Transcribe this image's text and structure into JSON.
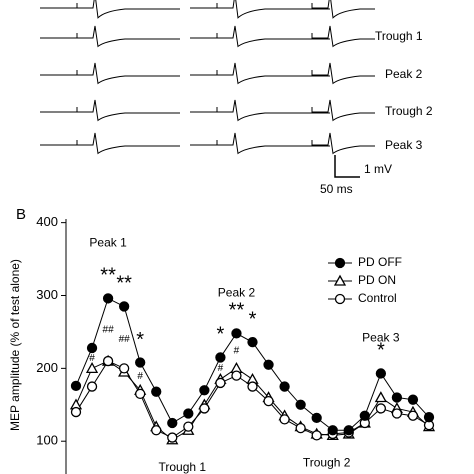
{
  "panel_label": "B",
  "traces": {
    "labels": [
      "Trough 1",
      "Peak 2",
      "Trough 2",
      "Peak 3"
    ],
    "scale_y": "1 mV",
    "scale_x": "50 ms"
  },
  "chart_data": {
    "type": "line",
    "ylabel": "MEP amplitude (% of test alone)",
    "categories": [
      null,
      null,
      null,
      null,
      null,
      null,
      null,
      null,
      null,
      null,
      null,
      null,
      null,
      null,
      null,
      null,
      null,
      null,
      null,
      null,
      null,
      null,
      null
    ],
    "series": [
      {
        "name": "PD OFF",
        "color": "#000000",
        "marker": "filled-circle",
        "values": [
          176,
          228,
          296,
          285,
          208,
          168,
          125,
          138,
          170,
          215,
          248,
          236,
          205,
          175,
          150,
          132,
          115,
          115,
          135,
          193,
          160,
          157,
          133
        ]
      },
      {
        "name": "PD ON",
        "color": "#000000",
        "marker": "triangle",
        "values": [
          150,
          200,
          210,
          195,
          170,
          120,
          102,
          115,
          150,
          185,
          200,
          185,
          160,
          135,
          120,
          110,
          108,
          110,
          125,
          160,
          145,
          140,
          120
        ]
      },
      {
        "name": "Control",
        "color": "#000000",
        "marker": "open-circle",
        "values": [
          140,
          175,
          210,
          200,
          165,
          115,
          105,
          120,
          145,
          180,
          190,
          175,
          155,
          130,
          118,
          108,
          110,
          112,
          125,
          145,
          138,
          135,
          122
        ]
      }
    ],
    "ylim": [
      55,
      405
    ],
    "yticks": [
      100,
      200,
      300,
      400
    ],
    "legend": "top-right",
    "annotations": [
      {
        "text": "Peak 1",
        "at": 2
      },
      {
        "text": "Peak 2",
        "at": 10
      },
      {
        "text": "Peak 3",
        "at": 19
      },
      {
        "text": "Trough 1",
        "at": 6
      },
      {
        "text": "Trough 2",
        "at": 15
      },
      {
        "text": "**",
        "at": 2
      },
      {
        "text": "**",
        "at": 3
      },
      {
        "text": "*",
        "at": 4
      },
      {
        "text": "*",
        "at": 9
      },
      {
        "text": "**",
        "at": 10
      },
      {
        "text": "*",
        "at": 11
      },
      {
        "text": "*",
        "at": 19
      },
      {
        "text": "#",
        "at": 1
      },
      {
        "text": "##",
        "at": 2
      },
      {
        "text": "##",
        "at": 3
      },
      {
        "text": "#",
        "at": 4
      },
      {
        "text": "#",
        "at": 9
      },
      {
        "text": "#",
        "at": 10
      }
    ]
  }
}
